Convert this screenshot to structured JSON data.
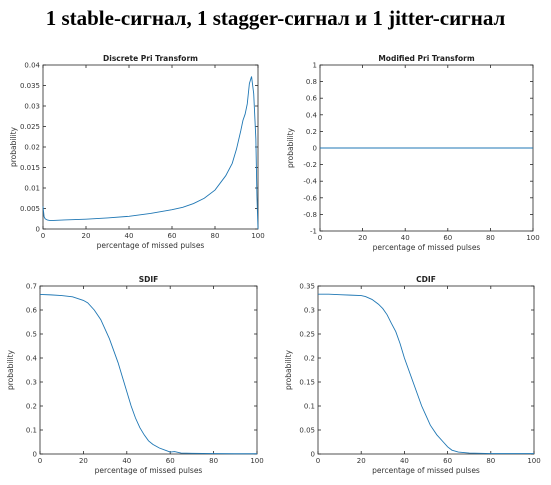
{
  "page": {
    "title": "1 stable-сигнал, 1 stagger-сигнал и 1 jitter-сигнал"
  },
  "colors": {
    "line": "#1f77b4",
    "axes": "#262626"
  },
  "chart_data": [
    {
      "id": "dpt",
      "type": "line",
      "title": "Discrete Pri Transform",
      "xlabel": "percentage of missed pulses",
      "ylabel": "probability",
      "xlim": [
        0,
        100
      ],
      "ylim": [
        0,
        0.04
      ],
      "xticks": [
        0,
        20,
        40,
        60,
        80,
        100
      ],
      "yticks": [
        0,
        0.005,
        0.01,
        0.015,
        0.02,
        0.025,
        0.03,
        0.035,
        0.04
      ],
      "ytick_labels": [
        "0",
        "0.005",
        "0.01",
        "0.015",
        "0.02",
        "0.025",
        "0.03",
        "0.035",
        "0.04"
      ],
      "x": [
        0,
        0.5,
        1,
        2,
        3,
        5,
        10,
        20,
        30,
        40,
        50,
        60,
        65,
        70,
        75,
        80,
        85,
        88,
        90,
        92,
        93,
        94,
        95,
        96,
        97,
        98,
        99,
        99.5,
        100
      ],
      "y": [
        0.0055,
        0.003,
        0.0025,
        0.0022,
        0.0021,
        0.0021,
        0.0022,
        0.0024,
        0.0027,
        0.0031,
        0.0038,
        0.0047,
        0.0053,
        0.0062,
        0.0075,
        0.0095,
        0.013,
        0.016,
        0.0195,
        0.024,
        0.0265,
        0.028,
        0.0305,
        0.0355,
        0.0372,
        0.033,
        0.022,
        0.008,
        0.0
      ]
    },
    {
      "id": "mpt",
      "type": "line",
      "title": "Modified Pri Transform",
      "xlabel": "percentage of missed pulses",
      "ylabel": "probability",
      "xlim": [
        0,
        100
      ],
      "ylim": [
        -1,
        1
      ],
      "xticks": [
        0,
        20,
        40,
        60,
        80,
        100
      ],
      "yticks": [
        -1,
        -0.8,
        -0.6,
        -0.4,
        -0.2,
        0,
        0.2,
        0.4,
        0.6,
        0.8,
        1
      ],
      "ytick_labels": [
        "-1",
        "-0.8",
        "-0.6",
        "-0.4",
        "-0.2",
        "0",
        "0.2",
        "0.4",
        "0.6",
        "0.8",
        "1"
      ],
      "x": [
        0,
        100
      ],
      "y": [
        0,
        0
      ]
    },
    {
      "id": "sdif",
      "type": "line",
      "title": "SDIF",
      "xlabel": "percentage of missed pulses",
      "ylabel": "probability",
      "xlim": [
        0,
        100
      ],
      "ylim": [
        0,
        0.7
      ],
      "xticks": [
        0,
        20,
        40,
        60,
        80,
        100
      ],
      "yticks": [
        0,
        0.1,
        0.2,
        0.3,
        0.4,
        0.5,
        0.6,
        0.7
      ],
      "ytick_labels": [
        "0",
        "0.1",
        "0.2",
        "0.3",
        "0.4",
        "0.5",
        "0.6",
        "0.7"
      ],
      "x": [
        0,
        5,
        10,
        15,
        20,
        22,
        25,
        28,
        30,
        32,
        34,
        36,
        38,
        40,
        42,
        44,
        46,
        48,
        50,
        52,
        55,
        58,
        60,
        62,
        65,
        70,
        80,
        90,
        100
      ],
      "y": [
        0.665,
        0.663,
        0.66,
        0.655,
        0.64,
        0.63,
        0.6,
        0.56,
        0.52,
        0.48,
        0.43,
        0.38,
        0.32,
        0.26,
        0.2,
        0.15,
        0.11,
        0.08,
        0.055,
        0.04,
        0.025,
        0.015,
        0.008,
        0.01,
        0.004,
        0.003,
        0.002,
        0.001,
        0.001
      ]
    },
    {
      "id": "cdif",
      "type": "line",
      "title": "CDIF",
      "xlabel": "percentage of missed pulses",
      "ylabel": "probability",
      "xlim": [
        0,
        100
      ],
      "ylim": [
        0,
        0.35
      ],
      "xticks": [
        0,
        20,
        40,
        60,
        80,
        100
      ],
      "yticks": [
        0,
        0.05,
        0.1,
        0.15,
        0.2,
        0.25,
        0.3,
        0.35
      ],
      "ytick_labels": [
        "0",
        "0.05",
        "0.1",
        "0.15",
        "0.2",
        "0.25",
        "0.3",
        "0.35"
      ],
      "x": [
        0,
        5,
        10,
        15,
        20,
        22,
        25,
        28,
        30,
        32,
        34,
        36,
        38,
        40,
        42,
        44,
        46,
        48,
        50,
        52,
        55,
        58,
        60,
        62,
        65,
        70,
        80,
        90,
        100
      ],
      "y": [
        0.333,
        0.333,
        0.332,
        0.331,
        0.33,
        0.328,
        0.322,
        0.312,
        0.303,
        0.29,
        0.272,
        0.255,
        0.23,
        0.2,
        0.175,
        0.15,
        0.125,
        0.1,
        0.08,
        0.06,
        0.04,
        0.025,
        0.015,
        0.008,
        0.004,
        0.002,
        0.001,
        0.001,
        0.001
      ]
    }
  ]
}
